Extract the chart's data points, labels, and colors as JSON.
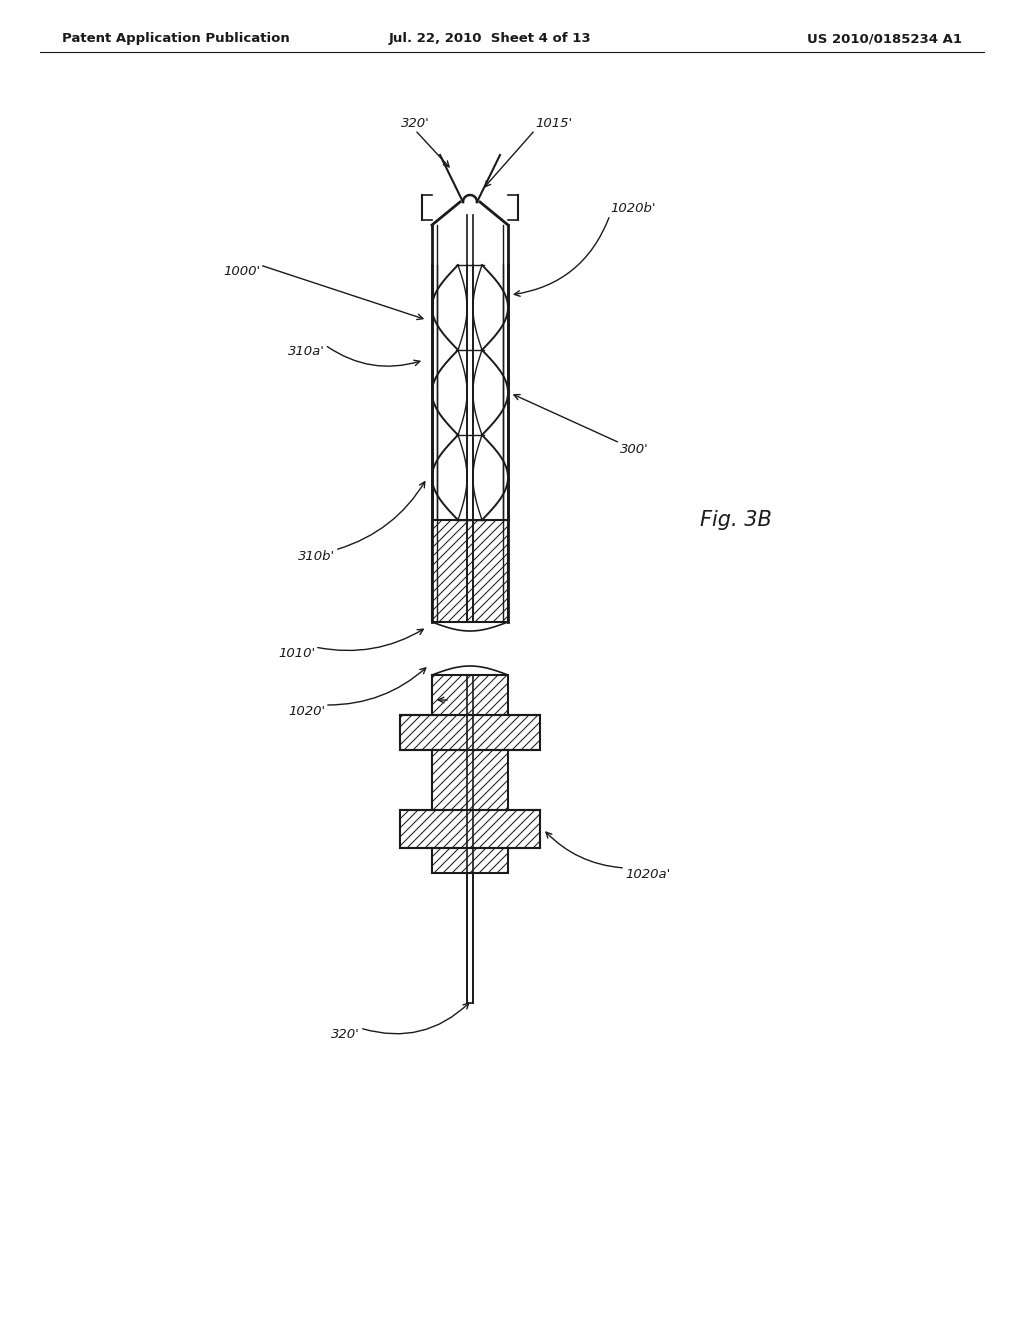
{
  "bg_color": "#ffffff",
  "lc": "#1a1a1a",
  "header_left": "Patent Application Publication",
  "header_mid": "Jul. 22, 2010  Sheet 4 of 13",
  "header_right": "US 2010/0185234 A1",
  "fig_label": "Fig. 3B",
  "label_1000p": "1000'",
  "label_320p_top": "320'",
  "label_1015p": "1015'",
  "label_1020bp": "1020b'",
  "label_310ap": "310a'",
  "label_300p": "300'",
  "label_310bp": "310b'",
  "label_1010p": "1010'",
  "label_1020p": "1020'",
  "label_1020ap": "1020a'",
  "label_320p_bot": "320'"
}
